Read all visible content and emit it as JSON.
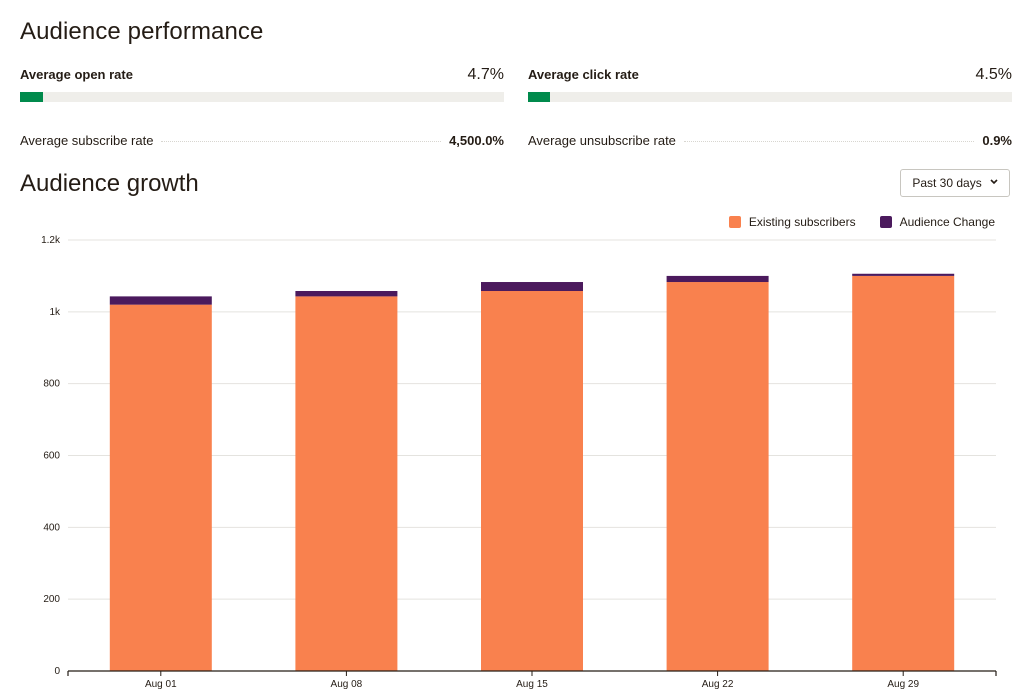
{
  "performance": {
    "title": "Audience performance",
    "open_rate": {
      "label": "Average open rate",
      "value": "4.7%",
      "progress": 0.047
    },
    "click_rate": {
      "label": "Average click rate",
      "value": "4.5%",
      "progress": 0.045
    },
    "subscribe_rate": {
      "label": "Average subscribe rate",
      "value": "4,500.0%"
    },
    "unsubscribe_rate": {
      "label": "Average unsubscribe rate",
      "value": "0.9%"
    }
  },
  "growth": {
    "title": "Audience growth",
    "period_select": {
      "value": "Past 30 days",
      "icon": "chevron-down-icon"
    }
  },
  "colors": {
    "existing": "#f9814e",
    "change": "#4b1a5d",
    "progress": "#008a4c",
    "track": "#efeeea"
  },
  "chart_data": {
    "type": "bar",
    "stacked": true,
    "categories": [
      "Aug 01",
      "Aug 08",
      "Aug 15",
      "Aug 22",
      "Aug 29"
    ],
    "series": [
      {
        "name": "Existing subscribers",
        "values": [
          1020,
          1043,
          1058,
          1083,
          1100
        ],
        "color": "#f9814e"
      },
      {
        "name": "Audience Change",
        "values": [
          23,
          15,
          25,
          17,
          6
        ],
        "color": "#4b1a5d"
      }
    ],
    "y_ticks": [
      "0",
      "200",
      "400",
      "600",
      "800",
      "1k",
      "1.2k"
    ],
    "ylim": [
      0,
      1200
    ],
    "grid": true,
    "legend_position": "top-right"
  }
}
